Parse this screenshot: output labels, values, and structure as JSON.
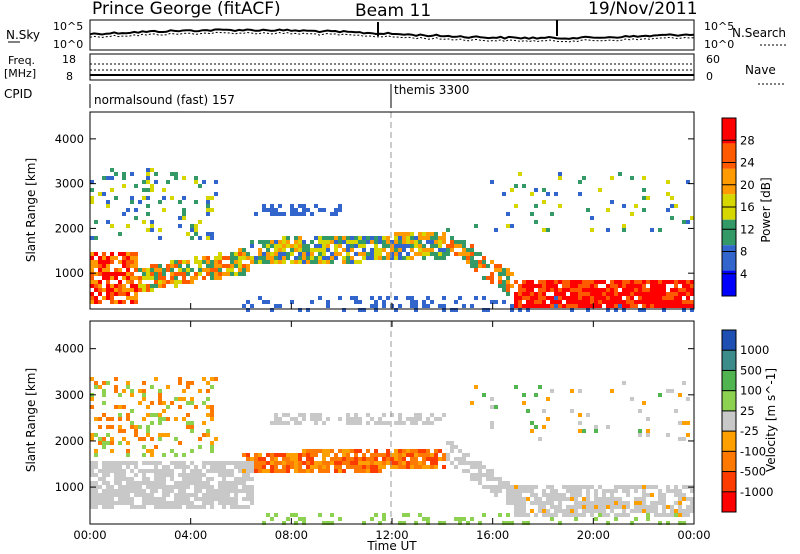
{
  "header": {
    "station": "Prince George (fitACF)",
    "beam": "Beam 11",
    "date": "19/Nov/2011"
  },
  "noise_panel": {
    "left_label": "N.Sky",
    "right_label": "N.Search",
    "left_ticks": [
      "10^5",
      "10^0"
    ],
    "right_ticks": [
      "10^5",
      "10^0"
    ]
  },
  "freq_panel": {
    "left_label_1": "Freq.",
    "left_label_2": "[MHz]",
    "right_label": "Nave",
    "left_ticks": [
      "18",
      "8"
    ],
    "right_ticks": [
      "60",
      "0"
    ]
  },
  "cpid": {
    "label": "CPID",
    "segments": [
      {
        "name": "normalsound (fast) 157",
        "start_hour": 0
      },
      {
        "name": "themis 3300",
        "start_hour": 12
      }
    ]
  },
  "chart_data": [
    {
      "type": "heatmap",
      "panel": "power",
      "ylabel": "Slant Range [km]",
      "xlabel": "Time UT",
      "xlim": [
        0,
        24
      ],
      "ylim": [
        200,
        4600
      ],
      "yticks": [
        1000,
        2000,
        3000,
        4000
      ],
      "xtick_labels": [
        "00:00",
        "04:00",
        "08:00",
        "12:00",
        "16:00",
        "20:00",
        "00:00"
      ],
      "colorbar": {
        "label": "Power [dB]",
        "tick_labels": [
          "28",
          "24",
          "20",
          "16",
          "12",
          "8",
          "4"
        ],
        "colors": [
          "#ff0000",
          "#ff5a00",
          "#ff9b00",
          "#d7d700",
          "#339966",
          "#3366cc",
          "#0000ff"
        ]
      },
      "features": [
        {
          "t_start": 0.0,
          "t_end": 1.6,
          "range_center_km": 900,
          "power_db": 26
        },
        {
          "t_start": 2.0,
          "t_end": 6.0,
          "range_center_km": 1000,
          "power_db": 22
        },
        {
          "t_start": 6.0,
          "t_end": 14.0,
          "range_center_km": 1600,
          "power_db": 18
        },
        {
          "t_start": 14.0,
          "t_end": 16.5,
          "range_center_km": 1000,
          "power_db": 20
        },
        {
          "t_start": 16.5,
          "t_end": 24.0,
          "range_center_km": 600,
          "power_db": 27
        }
      ]
    },
    {
      "type": "heatmap",
      "panel": "velocity",
      "ylabel": "Slant Range [km]",
      "xlabel": "Time UT",
      "xlim": [
        0,
        24
      ],
      "ylim": [
        200,
        4600
      ],
      "yticks": [
        1000,
        2000,
        3000,
        4000
      ],
      "xtick_labels": [
        "00:00",
        "04:00",
        "08:00",
        "12:00",
        "16:00",
        "20:00",
        "00:00"
      ],
      "colorbar": {
        "label": "Velocity [m s^-1]",
        "tick_labels": [
          "1000",
          "500",
          "100",
          "25",
          "-25",
          "-100",
          "-500",
          "-1000"
        ],
        "colors": [
          "#1e50b4",
          "#3c8c8c",
          "#50b450",
          "#8cd250",
          "#c8c8c8",
          "#ffa000",
          "#ff7800",
          "#ff3c00",
          "#ff0000"
        ]
      },
      "features": [
        {
          "t_start": 0.0,
          "t_end": 7.0,
          "range_center_km": 1000,
          "velocity": 0
        },
        {
          "t_start": 6.0,
          "t_end": 14.0,
          "range_center_km": 1600,
          "velocity": -150
        },
        {
          "t_start": 16.5,
          "t_end": 24.0,
          "range_center_km": 700,
          "velocity": 0
        }
      ]
    }
  ]
}
